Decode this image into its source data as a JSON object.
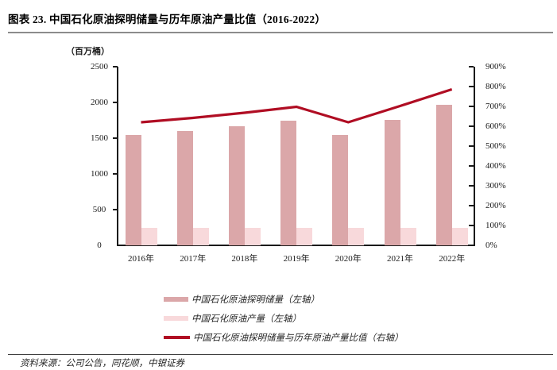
{
  "page": {
    "title": "图表 23. 中国石化原油探明储量与历年原油产量比值（2016-2022）",
    "source": "资料来源：公司公告，同花顺，中银证券"
  },
  "chart_data": {
    "type": "bar+line combo",
    "title": "中国石化原油探明储量与历年原油产量比值（2016-2022）",
    "unit_label": "（百万桶）",
    "categories": [
      "2016年",
      "2017年",
      "2018年",
      "2019年",
      "2020年",
      "2021年",
      "2022年"
    ],
    "series": [
      {
        "name": "中国石化原油探明储量（左轴）",
        "type": "bar",
        "axis": "left",
        "color": "#DBA7A9",
        "values": [
          1550,
          1605,
          1670,
          1745,
          1550,
          1755,
          1965
        ]
      },
      {
        "name": "中国石化原油产量（左轴）",
        "type": "bar",
        "axis": "left",
        "color": "#F8D9DB",
        "values": [
          250,
          250,
          250,
          250,
          250,
          250,
          250
        ]
      },
      {
        "name": "中国石化原油探明储量与历年原油产量比值（右轴）",
        "type": "line",
        "axis": "right",
        "color": "#B00D23",
        "values": [
          620,
          642,
          668,
          698,
          620,
          702,
          786
        ]
      }
    ],
    "left_axis": {
      "min": 0,
      "max": 2500,
      "step": 500,
      "tick_labels": [
        "2500",
        "2000",
        "1500",
        "1000",
        "500",
        "0"
      ],
      "tick_values": [
        2500,
        2000,
        1500,
        1000,
        500,
        0
      ]
    },
    "right_axis": {
      "min": 0,
      "max": 900,
      "step": 100,
      "tick_labels": [
        "900%",
        "800%",
        "700%",
        "600%",
        "500%",
        "400%",
        "300%",
        "200%",
        "100%",
        "0%"
      ],
      "tick_values": [
        900,
        800,
        700,
        600,
        500,
        400,
        300,
        200,
        100,
        0
      ]
    },
    "legend_position": "bottom",
    "grid": false
  },
  "colors": {
    "reserves_bar": "#DBA7A9",
    "production_bar": "#F8D9DB",
    "ratio_line": "#B00D23",
    "axis": "#1a1a1a",
    "title_rule": "#8c8c8c",
    "bottom_rule": "#404040"
  }
}
